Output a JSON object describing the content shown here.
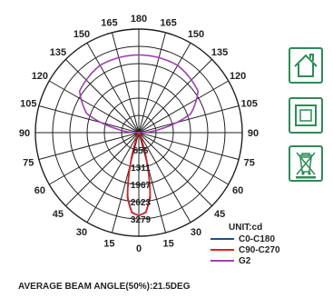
{
  "chart_data": {
    "type": "polar",
    "angle_labels_left": [
      "165",
      "150",
      "135",
      "120",
      "105",
      "90",
      "75",
      "60",
      "45",
      "30",
      "15"
    ],
    "angle_labels_right": [
      "165",
      "150",
      "135",
      "120",
      "105",
      "90",
      "75",
      "60",
      "45",
      "30",
      "15"
    ],
    "angle_label_top": "180",
    "angle_label_bottom": "0",
    "ring_values": [
      655,
      1311,
      1967,
      2623,
      3279
    ],
    "ring_labels": [
      "655",
      "1311",
      "1967",
      "2623",
      "3279"
    ],
    "rmax": 3279,
    "unit_label": "UNIT:cd",
    "series": [
      {
        "name": "C0-C180",
        "color": "#1f4e8c",
        "points": [
          [
            0,
            3150
          ],
          [
            5,
            3030
          ],
          [
            10,
            2450
          ],
          [
            15,
            1200
          ],
          [
            20,
            350
          ],
          [
            30,
            50
          ],
          [
            60,
            0
          ]
        ]
      },
      {
        "name": "C90-C270",
        "color": "#e02020",
        "points": [
          [
            0,
            3150
          ],
          [
            5,
            3050
          ],
          [
            10,
            2500
          ],
          [
            15,
            1250
          ],
          [
            20,
            380
          ],
          [
            30,
            60
          ],
          [
            60,
            0
          ]
        ]
      },
      {
        "name": "G2",
        "color": "#a040b0",
        "points": [
          [
            0,
            0
          ],
          [
            90,
            0
          ],
          [
            100,
            900
          ],
          [
            110,
            2100
          ],
          [
            125,
            2750
          ],
          [
            150,
            2950
          ],
          [
            180,
            2950
          ]
        ]
      }
    ]
  },
  "footer_text": "AVERAGE BEAM ANGLE(50%):21.5DEG",
  "icons": {
    "home": "home-icon",
    "class2": "double-square-icon",
    "weee": "crossed-bin-icon"
  },
  "colors": {
    "icon_green": "#2e8b57",
    "grid": "#222222"
  }
}
